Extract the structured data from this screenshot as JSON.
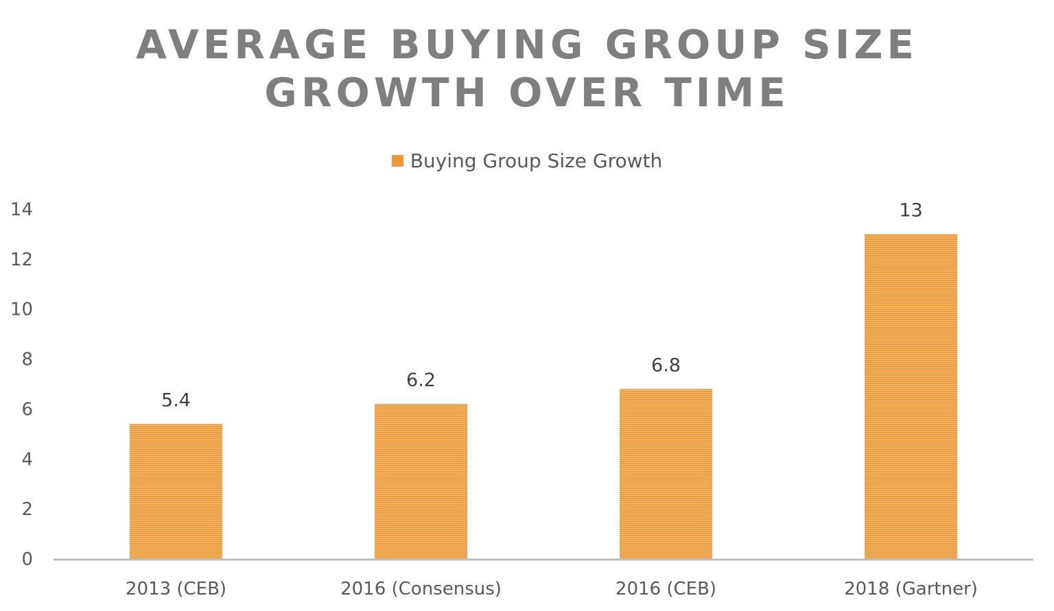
{
  "chart_data": {
    "type": "bar",
    "title_lines": [
      "AVERAGE BUYING GROUP SIZE",
      "GROWTH OVER TIME"
    ],
    "categories": [
      "2013 (CEB)",
      "2016 (Consensus)",
      "2016 (CEB)",
      "2018 (Gartner)"
    ],
    "series": [
      {
        "name": "Buying Group Size Growth",
        "values": [
          5.4,
          6.2,
          6.8,
          13
        ]
      }
    ],
    "data_labels": [
      "5.4",
      "6.2",
      "6.8",
      "13"
    ],
    "y_ticks": [
      "0",
      "2",
      "4",
      "6",
      "8",
      "10",
      "12",
      "14"
    ],
    "ylim": [
      0,
      14
    ],
    "grid": false,
    "legend_position": "top",
    "bar_color": "#ee9a3a",
    "bar_stripe_color": "#f6c07e",
    "axis_color": "#bfbfbf",
    "title_color": "#7f7f7f"
  }
}
